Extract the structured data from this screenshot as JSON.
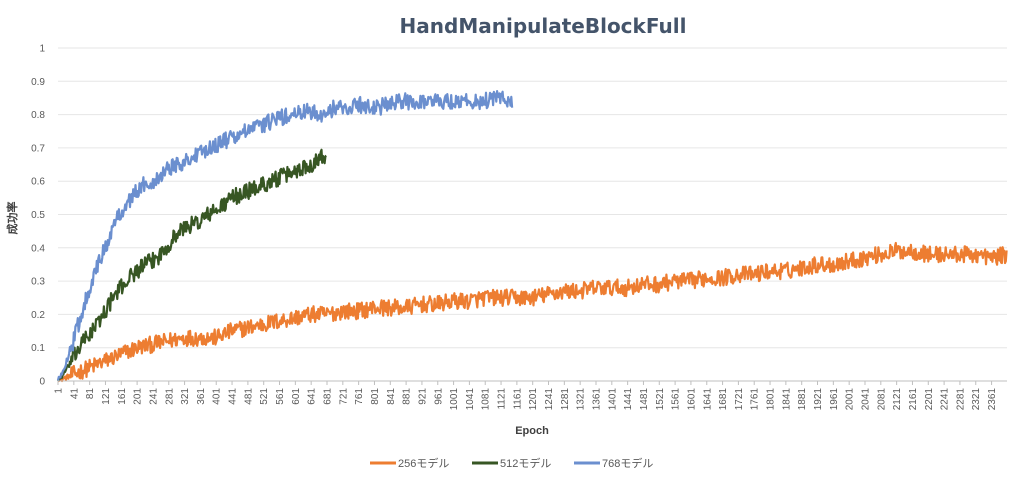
{
  "chart_data": {
    "type": "line",
    "title": "HandManipulateBlockFull",
    "xlabel": "Epoch",
    "ylabel": "成功率",
    "ylim": [
      0,
      1
    ],
    "yticks": [
      "0",
      "0.1",
      "0.2",
      "0.3",
      "0.4",
      "0.5",
      "0.6",
      "0.7",
      "0.8",
      "0.9",
      "1"
    ],
    "x_range": [
      1,
      2400
    ],
    "xticks": [
      "1",
      "41",
      "81",
      "121",
      "161",
      "201",
      "241",
      "281",
      "321",
      "361",
      "401",
      "441",
      "481",
      "521",
      "561",
      "601",
      "641",
      "681",
      "721",
      "761",
      "801",
      "841",
      "881",
      "921",
      "961",
      "1001",
      "1041",
      "1081",
      "1121",
      "1161",
      "1201",
      "1241",
      "1281",
      "1321",
      "1361",
      "1401",
      "1441",
      "1481",
      "1521",
      "1561",
      "1601",
      "1641",
      "1681",
      "1721",
      "1761",
      "1801",
      "1841",
      "1881",
      "1921",
      "1961",
      "2001",
      "2041",
      "2081",
      "2121",
      "2161",
      "2201",
      "2241",
      "2281",
      "2321",
      "2361"
    ],
    "grid": true,
    "legend_position": "bottom",
    "series": [
      {
        "name": "256モデル",
        "color": "#ed7d31",
        "noise": 0.025,
        "x": [
          1,
          40,
          80,
          120,
          160,
          200,
          240,
          280,
          320,
          360,
          400,
          440,
          480,
          520,
          560,
          600,
          640,
          680,
          720,
          760,
          800,
          840,
          880,
          920,
          960,
          1000,
          1040,
          1080,
          1120,
          1160,
          1200,
          1240,
          1280,
          1320,
          1360,
          1400,
          1440,
          1480,
          1520,
          1560,
          1600,
          1640,
          1680,
          1720,
          1760,
          1800,
          1840,
          1880,
          1920,
          1960,
          2000,
          2040,
          2080,
          2120,
          2160,
          2200,
          2240,
          2280,
          2320,
          2360,
          2400
        ],
        "values": [
          0.0,
          0.02,
          0.04,
          0.06,
          0.08,
          0.1,
          0.11,
          0.12,
          0.13,
          0.13,
          0.13,
          0.15,
          0.16,
          0.17,
          0.18,
          0.19,
          0.2,
          0.2,
          0.21,
          0.21,
          0.22,
          0.22,
          0.22,
          0.23,
          0.23,
          0.24,
          0.24,
          0.25,
          0.25,
          0.25,
          0.25,
          0.26,
          0.27,
          0.27,
          0.28,
          0.28,
          0.28,
          0.29,
          0.29,
          0.3,
          0.3,
          0.31,
          0.31,
          0.32,
          0.32,
          0.33,
          0.33,
          0.34,
          0.35,
          0.35,
          0.36,
          0.37,
          0.38,
          0.39,
          0.39,
          0.38,
          0.38,
          0.38,
          0.38,
          0.37,
          0.38
        ]
      },
      {
        "name": "512モデル",
        "color": "#375623",
        "noise": 0.025,
        "x": [
          1,
          20,
          40,
          60,
          80,
          100,
          120,
          140,
          160,
          180,
          200,
          220,
          240,
          260,
          280,
          300,
          320,
          340,
          360,
          380,
          400,
          420,
          440,
          460,
          480,
          500,
          520,
          540,
          560,
          580,
          600,
          620,
          640,
          660,
          680
        ],
        "values": [
          0.0,
          0.03,
          0.07,
          0.11,
          0.14,
          0.17,
          0.21,
          0.25,
          0.28,
          0.31,
          0.33,
          0.35,
          0.36,
          0.38,
          0.41,
          0.44,
          0.46,
          0.47,
          0.48,
          0.5,
          0.51,
          0.53,
          0.55,
          0.56,
          0.57,
          0.58,
          0.59,
          0.6,
          0.61,
          0.62,
          0.63,
          0.64,
          0.65,
          0.67,
          0.68
        ]
      },
      {
        "name": "768モデル",
        "color": "#6b8fcf",
        "noise": 0.025,
        "x": [
          1,
          20,
          40,
          60,
          80,
          100,
          120,
          140,
          160,
          180,
          200,
          220,
          240,
          260,
          280,
          300,
          320,
          340,
          360,
          380,
          400,
          440,
          480,
          520,
          560,
          600,
          640,
          680,
          700,
          720,
          760,
          800,
          840,
          880,
          920,
          960,
          1000,
          1040,
          1080,
          1120,
          1150
        ],
        "values": [
          0.0,
          0.05,
          0.12,
          0.2,
          0.28,
          0.34,
          0.4,
          0.46,
          0.51,
          0.54,
          0.57,
          0.59,
          0.6,
          0.62,
          0.64,
          0.65,
          0.66,
          0.67,
          0.68,
          0.7,
          0.71,
          0.73,
          0.75,
          0.77,
          0.79,
          0.8,
          0.81,
          0.8,
          0.82,
          0.82,
          0.83,
          0.82,
          0.83,
          0.84,
          0.84,
          0.84,
          0.84,
          0.84,
          0.84,
          0.85,
          0.84
        ]
      }
    ]
  }
}
